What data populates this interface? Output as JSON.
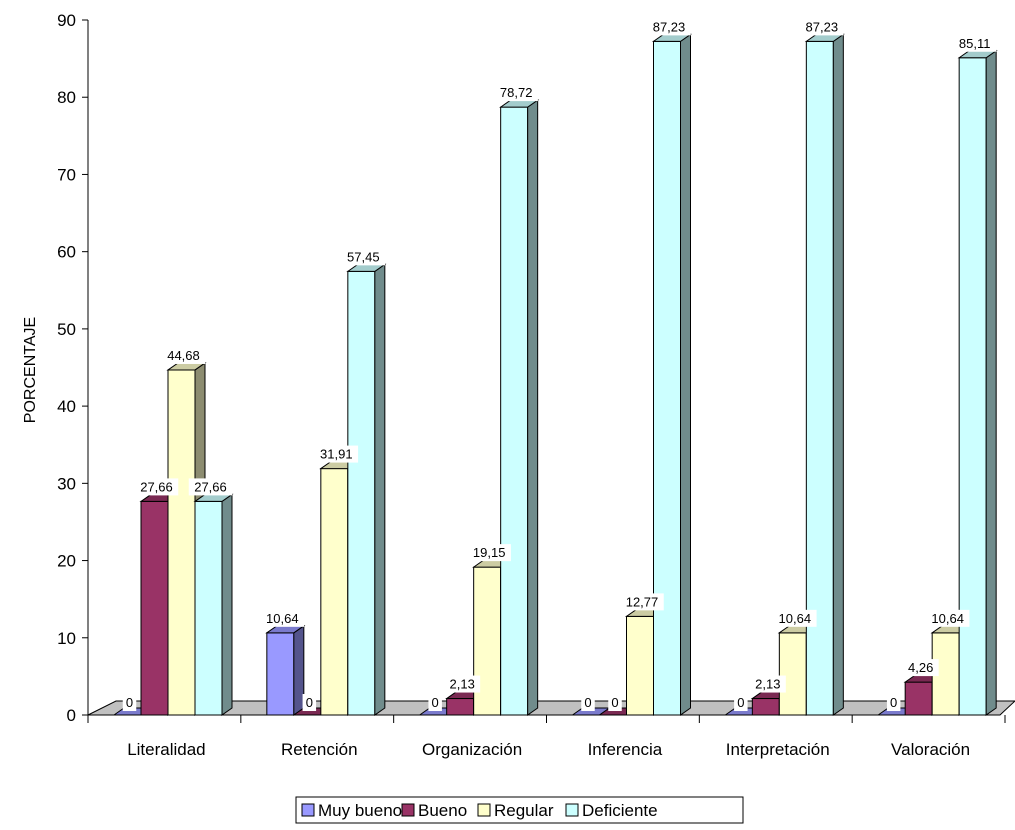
{
  "chart_data": {
    "type": "bar",
    "title": "",
    "xlabel": "",
    "ylabel": "PORCENTAJE",
    "ylim": [
      0,
      90
    ],
    "yticks": [
      "0",
      "10",
      "20",
      "30",
      "40",
      "50",
      "60",
      "70",
      "80",
      "90"
    ],
    "grid": false,
    "legend": "bottom",
    "categories": [
      "Literalidad",
      "Retención",
      "Organización",
      "Inferencia",
      "Interpretación",
      "Valoración"
    ],
    "series": [
      {
        "name": "Muy bueno",
        "color": "#9999ff",
        "values": [
          0,
          10.64,
          0,
          0,
          0,
          0
        ],
        "labels": [
          "0",
          "10,64",
          "0",
          "0",
          "0",
          "0"
        ]
      },
      {
        "name": "Bueno",
        "color": "#993366",
        "values": [
          27.66,
          0,
          2.13,
          0,
          2.13,
          4.26
        ],
        "labels": [
          "27,66",
          "0",
          "2,13",
          "0",
          "2,13",
          "4,26"
        ]
      },
      {
        "name": "Regular",
        "color": "#ffffcc",
        "values": [
          44.68,
          31.91,
          19.15,
          12.77,
          10.64,
          10.64
        ],
        "labels": [
          "44,68",
          "31,91",
          "19,15",
          "12,77",
          "10,64",
          "10,64"
        ]
      },
      {
        "name": "Deficiente",
        "color": "#ccffff",
        "values": [
          27.66,
          57.45,
          78.72,
          87.23,
          87.23,
          85.11
        ],
        "labels": [
          "27,66",
          "57,45",
          "78,72",
          "87,23",
          "87,23",
          "85,11"
        ]
      }
    ]
  }
}
